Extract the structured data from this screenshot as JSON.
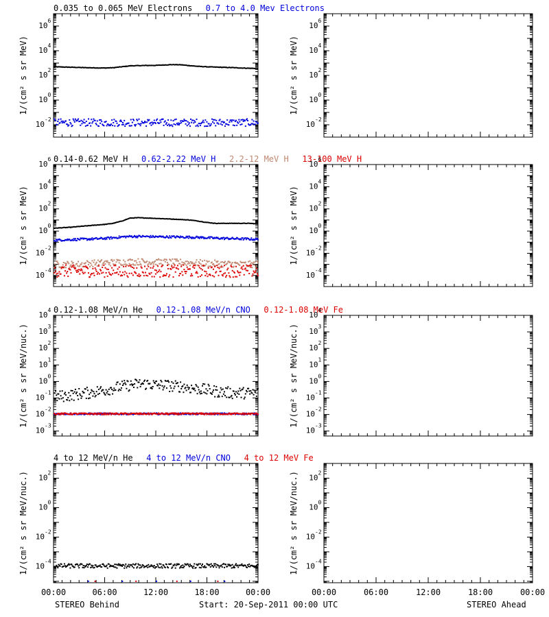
{
  "footer": {
    "left": "STEREO Behind",
    "center": "Start: 20-Sep-2011 00:00 UTC",
    "right": "STEREO Ahead"
  },
  "colors": {
    "black": "#000000",
    "blue": "#0000dd",
    "tan": "#c08870",
    "red": "#dd0000"
  },
  "x_ticks": [
    "00:00",
    "06:00",
    "12:00",
    "18:00",
    "00:00"
  ],
  "chart_data": [
    {
      "type": "scatter",
      "yscale": "log",
      "ylim": [
        0.001,
        10000000
      ],
      "ylabel": "1/(cm² s sr MeV)",
      "tick_exponents": [
        -2,
        0,
        2,
        4,
        6
      ],
      "titles": [
        {
          "text": "0.035 to 0.065 MeV Electrons",
          "color": "#000000"
        },
        {
          "text": "0.7 to 4.0 Mev Electrons",
          "color": "#0000dd"
        }
      ],
      "x_hours": [
        0,
        1,
        2,
        3,
        4,
        5,
        6,
        7,
        8,
        9,
        10,
        11,
        12,
        13,
        14,
        15,
        16,
        17,
        18,
        19,
        20,
        21,
        22,
        23,
        24
      ],
      "behind_series": [
        {
          "name": "0.035 to 0.065 MeV Electrons",
          "color": "#000000",
          "style": "line",
          "values": [
            500,
            480,
            460,
            440,
            420,
            410,
            400,
            420,
            500,
            600,
            620,
            640,
            650,
            700,
            750,
            720,
            620,
            540,
            500,
            470,
            450,
            430,
            400,
            380,
            370
          ]
        },
        {
          "name": "0.7 to 4.0 Mev Electrons",
          "color": "#0000dd",
          "style": "scatter",
          "spread": 0.3,
          "values": [
            0.015,
            0.015,
            0.015,
            0.015,
            0.015,
            0.015,
            0.015,
            0.015,
            0.015,
            0.015,
            0.015,
            0.015,
            0.015,
            0.015,
            0.015,
            0.015,
            0.015,
            0.015,
            0.015,
            0.015,
            0.015,
            0.015,
            0.015,
            0.015,
            0.015
          ]
        }
      ]
    },
    {
      "type": "scatter",
      "yscale": "log",
      "ylim": [
        1e-05,
        1000000
      ],
      "ylabel": "1/(cm² s sr MeV)",
      "tick_exponents": [
        -4,
        -2,
        0,
        2,
        4,
        6
      ],
      "titles": [
        {
          "text": "0.14-0.62 MeV H",
          "color": "#000000"
        },
        {
          "text": "0.62-2.22 MeV H",
          "color": "#0000dd"
        },
        {
          "text": "2.2-12 MeV H",
          "color": "#c08870"
        },
        {
          "text": "13-100 MeV H",
          "color": "#dd0000"
        }
      ],
      "x_hours": [
        0,
        1,
        2,
        3,
        4,
        5,
        6,
        7,
        8,
        9,
        10,
        11,
        12,
        13,
        14,
        15,
        16,
        17,
        18,
        19,
        20,
        21,
        22,
        23,
        24
      ],
      "behind_series": [
        {
          "name": "0.14-0.62 MeV H",
          "color": "#000000",
          "style": "line",
          "values": [
            1.8,
            2.0,
            2.2,
            2.6,
            3.0,
            3.5,
            4.0,
            5.0,
            8.0,
            15,
            16,
            15,
            14,
            13,
            12,
            11,
            10,
            8,
            6,
            5,
            5,
            5,
            5,
            5,
            4.5
          ]
        },
        {
          "name": "0.62-2.22 MeV H",
          "color": "#0000dd",
          "style": "scatter",
          "spread": 0.1,
          "values": [
            0.15,
            0.16,
            0.17,
            0.18,
            0.19,
            0.2,
            0.22,
            0.25,
            0.3,
            0.33,
            0.33,
            0.32,
            0.31,
            0.3,
            0.3,
            0.29,
            0.28,
            0.27,
            0.25,
            0.23,
            0.22,
            0.21,
            0.2,
            0.19,
            0.18
          ]
        },
        {
          "name": "2.2-12 MeV H",
          "color": "#c08870",
          "style": "scatter",
          "spread": 0.3,
          "values": [
            0.001,
            0.001,
            0.001,
            0.001,
            0.0012,
            0.0013,
            0.0014,
            0.0015,
            0.0016,
            0.0017,
            0.0017,
            0.0017,
            0.0016,
            0.0016,
            0.0015,
            0.0015,
            0.0014,
            0.0013,
            0.0012,
            0.0012,
            0.0011,
            0.0011,
            0.001,
            0.001,
            0.001
          ]
        },
        {
          "name": "13-100 MeV H",
          "color": "#dd0000",
          "style": "scatter",
          "spread": 0.55,
          "values": [
            0.00025,
            0.00025,
            0.00025,
            0.00025,
            0.00025,
            0.00025,
            0.00025,
            0.00025,
            0.00025,
            0.00025,
            0.00025,
            0.00025,
            0.00025,
            0.00025,
            0.00025,
            0.00025,
            0.00025,
            0.00025,
            0.00025,
            0.00025,
            0.00025,
            0.00025,
            0.00025,
            0.00025,
            0.00025
          ]
        }
      ]
    },
    {
      "type": "scatter",
      "yscale": "log",
      "ylim": [
        0.0005,
        10000
      ],
      "ylabel": "1/(cm² s sr MeV/nuc.)",
      "tick_exponents": [
        -3,
        -2,
        -1,
        0,
        1,
        2,
        3,
        4
      ],
      "titles": [
        {
          "text": "0.12-1.08 MeV/n He",
          "color": "#000000"
        },
        {
          "text": "0.12-1.08 MeV/n CNO",
          "color": "#0000dd"
        },
        {
          "text": "0.12-1.08 MeV Fe",
          "color": "#dd0000"
        }
      ],
      "x_hours": [
        0,
        1,
        2,
        3,
        4,
        5,
        6,
        7,
        8,
        9,
        10,
        11,
        12,
        13,
        14,
        15,
        16,
        17,
        18,
        19,
        20,
        21,
        22,
        23,
        24
      ],
      "behind_series": [
        {
          "name": "0.12-1.08 MeV/n He",
          "color": "#000000",
          "style": "scatter",
          "spread": 0.35,
          "values": [
            0.12,
            0.13,
            0.15,
            0.18,
            0.2,
            0.25,
            0.3,
            0.4,
            0.5,
            0.6,
            0.7,
            0.7,
            0.6,
            0.6,
            0.5,
            0.5,
            0.4,
            0.35,
            0.3,
            0.25,
            0.22,
            0.2,
            0.2,
            0.2,
            0.2
          ]
        },
        {
          "name": "0.12-1.08 MeV/n CNO",
          "color": "#0000dd",
          "style": "scatter",
          "spread": 0.05,
          "values": [
            0.011,
            0.011,
            0.011,
            0.011,
            0.011,
            0.011,
            0.011,
            0.011,
            0.011,
            0.011,
            0.011,
            0.011,
            0.011,
            0.011,
            0.011,
            0.011,
            0.011,
            0.011,
            0.011,
            0.011,
            0.011,
            0.011,
            0.011,
            0.011,
            0.011
          ]
        },
        {
          "name": "0.12-1.08 MeV Fe",
          "color": "#dd0000",
          "style": "scatter",
          "spread": 0.05,
          "values": [
            0.011,
            0.011,
            0.011,
            0.011,
            0.011,
            0.011,
            0.011,
            0.011,
            0.011,
            0.011,
            0.011,
            0.011,
            0.011,
            0.011,
            0.011,
            0.011,
            0.011,
            0.011,
            0.011,
            0.011,
            0.011,
            0.011,
            0.011,
            0.011,
            0.011
          ]
        }
      ]
    },
    {
      "type": "scatter",
      "yscale": "log",
      "ylim": [
        8e-06,
        1000
      ],
      "ylabel": "1/(cm² s sr MeV/nuc.)",
      "tick_exponents": [
        -4,
        -2,
        0,
        2
      ],
      "titles": [
        {
          "text": "4 to 12 MeV/n He",
          "color": "#000000"
        },
        {
          "text": "4 to 12 MeV/n CNO",
          "color": "#0000dd"
        },
        {
          "text": "4 to 12 MeV Fe",
          "color": "#dd0000"
        }
      ],
      "x_hours": [
        0,
        1,
        2,
        3,
        4,
        5,
        6,
        7,
        8,
        9,
        10,
        11,
        12,
        13,
        14,
        15,
        16,
        17,
        18,
        19,
        20,
        21,
        22,
        23,
        24
      ],
      "behind_series": [
        {
          "name": "4 to 12 MeV/n He",
          "color": "#000000",
          "style": "scatter",
          "spread": 0.15,
          "values": [
            0.00011,
            0.00011,
            0.00011,
            0.00011,
            0.00011,
            0.00011,
            0.00011,
            0.00011,
            0.00011,
            0.00011,
            0.00011,
            0.00011,
            0.00011,
            0.00011,
            0.00011,
            0.00011,
            0.00011,
            0.00011,
            0.00011,
            0.00011,
            0.00011,
            0.00011,
            0.00011,
            0.00011,
            0.00011
          ]
        },
        {
          "name": "4 to 12 MeV/n CNO",
          "color": "#0000dd",
          "style": "sparse",
          "values": [
            1e-05,
            1e-05,
            1e-05,
            1e-05,
            1e-05
          ]
        },
        {
          "name": "4 to 12 MeV Fe",
          "color": "#dd0000",
          "style": "sparse",
          "values": [
            1e-05,
            1e-05,
            1e-05,
            1e-05
          ]
        }
      ]
    }
  ]
}
